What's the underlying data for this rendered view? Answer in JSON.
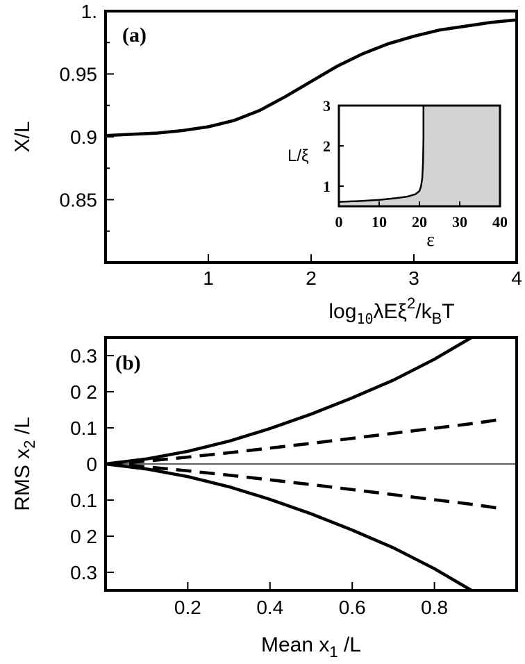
{
  "chart_data": [
    {
      "panel": "(a)",
      "type": "line",
      "xlabel_parts": [
        "log",
        "10",
        "λEξ",
        "2",
        "/k",
        "B",
        "T"
      ],
      "ylabel": "X/L",
      "xlim": [
        0,
        4
      ],
      "ylim": [
        0.8,
        1.0
      ],
      "xticks": [
        1,
        2,
        3,
        4
      ],
      "xtick_labels": [
        "1",
        "2",
        "3",
        "4"
      ],
      "yticks": [
        0.85,
        0.9,
        0.95,
        1.0
      ],
      "ytick_labels": [
        "0.85",
        "0.9",
        "0.95",
        "1."
      ],
      "series": [
        {
          "x": [
            0.0,
            0.25,
            0.5,
            0.75,
            1.0,
            1.25,
            1.5,
            1.75,
            2.0,
            2.25,
            2.5,
            2.75,
            3.0,
            3.25,
            3.5,
            3.75,
            4.0
          ],
          "y": [
            0.901,
            0.902,
            0.903,
            0.905,
            0.908,
            0.913,
            0.921,
            0.932,
            0.944,
            0.956,
            0.966,
            0.974,
            0.98,
            0.985,
            0.988,
            0.991,
            0.993
          ]
        }
      ],
      "inset": {
        "type": "area",
        "xlabel": "ε",
        "ylabel": "L/ξ",
        "xlim": [
          0,
          40
        ],
        "ylim": [
          0.5,
          3
        ],
        "xticks": [
          0,
          10,
          20,
          30,
          40
        ],
        "xtick_labels": [
          "0",
          "10",
          "20",
          "30",
          "40"
        ],
        "yticks": [
          1,
          2,
          3
        ],
        "ytick_labels": [
          "1",
          "2",
          "3"
        ],
        "fill_color": "#d3d3d3",
        "boundary": {
          "x": [
            0,
            5,
            10,
            14,
            17,
            19,
            20,
            20.4,
            20.7,
            20.9,
            21.0,
            21.0
          ],
          "y": [
            0.61,
            0.63,
            0.66,
            0.7,
            0.74,
            0.8,
            0.88,
            1.0,
            1.2,
            1.6,
            2.2,
            3.0
          ]
        }
      }
    },
    {
      "panel": "(b)",
      "type": "line",
      "xlabel_parts": [
        "Mean x",
        "1",
        " /L"
      ],
      "ylabel_parts": [
        "RMS x",
        "2",
        " /L"
      ],
      "xlim": [
        0,
        1.0
      ],
      "ylim": [
        -0.35,
        0.35
      ],
      "xticks": [
        0.2,
        0.4,
        0.6,
        0.8
      ],
      "xtick_labels": [
        "0.2",
        "0.4",
        "0.6",
        "0.8"
      ],
      "yticks": [
        0.3,
        0.2,
        0.1,
        0,
        -0.1,
        -0.2,
        -0.3
      ],
      "ytick_labels": [
        "0.3",
        "0 2",
        "0.1",
        "0",
        "0.1",
        "0 2",
        "0.3"
      ],
      "zero_line": true,
      "series": [
        {
          "style": "solid",
          "x": [
            0.0,
            0.1,
            0.2,
            0.3,
            0.4,
            0.5,
            0.6,
            0.7,
            0.8,
            0.89
          ],
          "y": [
            0.0,
            0.014,
            0.035,
            0.063,
            0.098,
            0.138,
            0.183,
            0.232,
            0.29,
            0.35
          ]
        },
        {
          "style": "solid",
          "x": [
            0.0,
            0.1,
            0.2,
            0.3,
            0.4,
            0.5,
            0.6,
            0.7,
            0.8,
            0.89
          ],
          "y": [
            0.0,
            -0.014,
            -0.035,
            -0.063,
            -0.098,
            -0.138,
            -0.183,
            -0.232,
            -0.29,
            -0.35
          ]
        },
        {
          "style": "dashed",
          "x": [
            0.0,
            0.1,
            0.2,
            0.3,
            0.4,
            0.5,
            0.6,
            0.7,
            0.8,
            0.9,
            0.96
          ],
          "y": [
            0.0,
            0.008,
            0.019,
            0.031,
            0.044,
            0.057,
            0.071,
            0.085,
            0.099,
            0.113,
            0.123
          ]
        },
        {
          "style": "dashed",
          "x": [
            0.0,
            0.1,
            0.2,
            0.3,
            0.4,
            0.5,
            0.6,
            0.7,
            0.8,
            0.9,
            0.96
          ],
          "y": [
            0.0,
            -0.008,
            -0.019,
            -0.031,
            -0.044,
            -0.057,
            -0.071,
            -0.085,
            -0.099,
            -0.113,
            -0.123
          ]
        }
      ]
    }
  ]
}
